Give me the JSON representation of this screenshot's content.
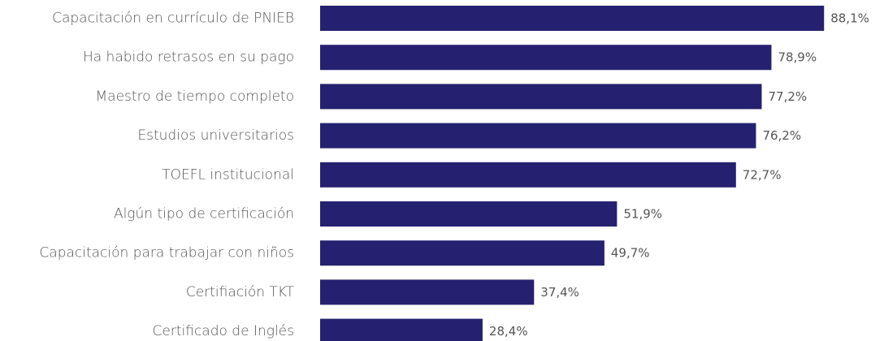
{
  "chart_data": {
    "type": "bar",
    "orientation": "horizontal",
    "title": "",
    "xlabel": "",
    "ylabel": "",
    "xlim": [
      0,
      100
    ],
    "grid": false,
    "legend": "none",
    "bar_color": "#252170",
    "label_color": "#555555",
    "value_format": "{v}%",
    "categories": [
      "Capacitación en currículo de PNIEB",
      "Ha habido retrasos en su pago",
      "Maestro de tiempo completo",
      "Estudios universitarios",
      "TOEFL institucional",
      "Algún tipo de certificación",
      "Capacitación para trabajar con niños",
      "Certifiación TKT",
      "Certificado de Inglés"
    ],
    "values": [
      88.1,
      78.9,
      77.2,
      76.2,
      72.7,
      51.9,
      49.7,
      37.4,
      28.4
    ],
    "value_labels": [
      "88,1%",
      "78,9%",
      "77,2%",
      "76,2%",
      "72,7%",
      "51,9%",
      "49,7%",
      "37,4%",
      "28,4%"
    ]
  }
}
